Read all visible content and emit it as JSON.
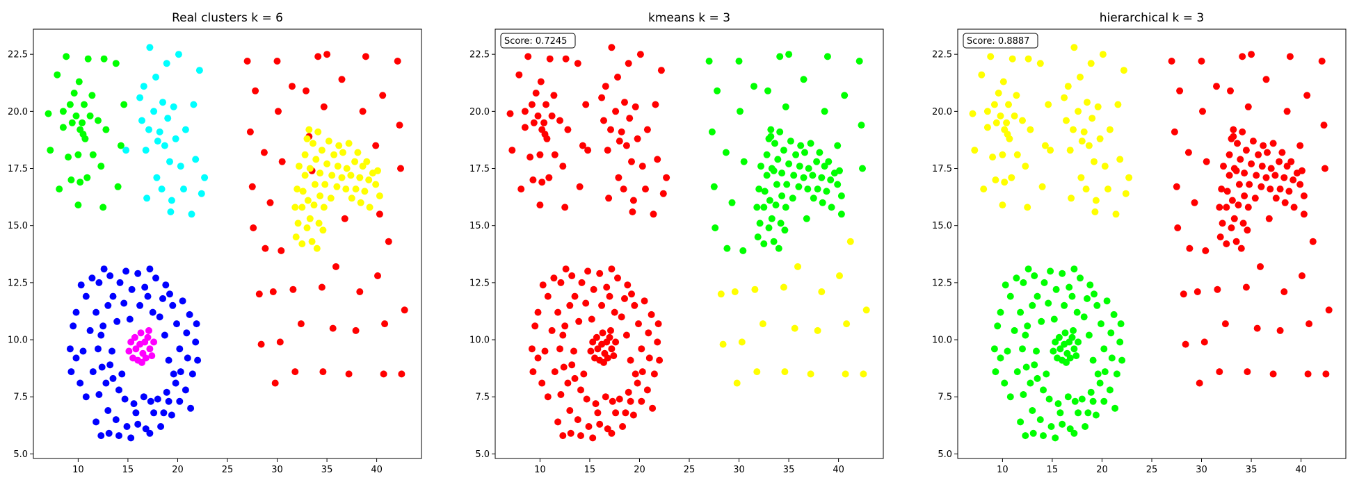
{
  "figure": {
    "panels": [
      {
        "title": "Real clusters k = 6",
        "score": null
      },
      {
        "title": "kmeans k = 3",
        "score": "Score: 0.7245"
      },
      {
        "title": "hierarchical k = 3",
        "score": "Score: 0.8887"
      }
    ],
    "x_ticks": [
      "10",
      "15",
      "20",
      "25",
      "30",
      "35",
      "40"
    ],
    "y_ticks": [
      "5.0",
      "7.5",
      "10.0",
      "12.5",
      "15.0",
      "17.5",
      "20.0",
      "22.5"
    ]
  },
  "chart_data": [
    {
      "type": "scatter",
      "title": "Real clusters k = 6",
      "xlabel": "",
      "ylabel": "",
      "xlim": [
        5.5,
        44.5
      ],
      "ylim": [
        4.8,
        23.6
      ],
      "grid": false,
      "cluster_colors": {
        "A": "#00ff00",
        "B": "#00ffff",
        "C": "#ff0000",
        "D": "#ffff00",
        "E": "#0000ff",
        "F": "#ff00ff"
      }
    },
    {
      "type": "scatter",
      "title": "kmeans k = 3",
      "annotation": "Score: 0.7245",
      "xlabel": "",
      "ylabel": "",
      "xlim": [
        5.5,
        44.5
      ],
      "ylim": [
        4.8,
        23.6
      ],
      "grid": false,
      "cluster_colors": {
        "A": "#ff0000",
        "B": "#ff0000",
        "C": "#00ff00",
        "D": "#00ff00",
        "E": "#ff0000",
        "F": "#ff0000",
        "C_low": "#ffff00"
      }
    },
    {
      "type": "scatter",
      "title": "hierarchical k = 3",
      "annotation": "Score: 0.8887",
      "xlabel": "",
      "ylabel": "",
      "xlim": [
        5.5,
        44.5
      ],
      "ylim": [
        4.8,
        23.6
      ],
      "grid": false,
      "cluster_colors": {
        "A": "#ffff00",
        "B": "#ffff00",
        "C": "#ff0000",
        "D": "#ff0000",
        "E": "#00ff00",
        "F": "#00ff00"
      }
    }
  ],
  "points": {
    "A": [
      [
        7,
        19.9
      ],
      [
        7.2,
        18.3
      ],
      [
        7.9,
        21.6
      ],
      [
        8.1,
        16.6
      ],
      [
        8.5,
        19.3
      ],
      [
        8.5,
        20
      ],
      [
        8.8,
        22.4
      ],
      [
        9,
        18
      ],
      [
        9.2,
        20.3
      ],
      [
        9.3,
        17
      ],
      [
        9.4,
        19.5
      ],
      [
        9.6,
        20.8
      ],
      [
        9.8,
        19.8
      ],
      [
        10,
        18.1
      ],
      [
        10,
        15.9
      ],
      [
        10.1,
        21.3
      ],
      [
        10.2,
        16.9
      ],
      [
        10.2,
        19.2
      ],
      [
        10.4,
        19.5
      ],
      [
        10.5,
        19
      ],
      [
        10.6,
        20.3
      ],
      [
        10.7,
        18.8
      ],
      [
        10.9,
        17.1
      ],
      [
        11,
        22.3
      ],
      [
        11.2,
        19.8
      ],
      [
        11.4,
        20.7
      ],
      [
        11.5,
        18.1
      ],
      [
        12,
        19.6
      ],
      [
        12.3,
        17.6
      ],
      [
        12.5,
        15.8
      ],
      [
        12.6,
        22.3
      ],
      [
        12.8,
        19.2
      ],
      [
        13.8,
        22.1
      ],
      [
        14,
        16.7
      ],
      [
        14.3,
        18.5
      ],
      [
        14.6,
        20.3
      ]
    ],
    "B": [
      [
        14.8,
        18.3
      ],
      [
        16.2,
        20.6
      ],
      [
        16.4,
        19.6
      ],
      [
        16.6,
        21.1
      ],
      [
        16.8,
        18.3
      ],
      [
        16.9,
        16.2
      ],
      [
        17.1,
        19.2
      ],
      [
        17.2,
        22.8
      ],
      [
        17.6,
        20
      ],
      [
        17.8,
        21.5
      ],
      [
        17.9,
        17.1
      ],
      [
        18,
        18.7
      ],
      [
        18.2,
        19.1
      ],
      [
        18.4,
        16.6
      ],
      [
        18.5,
        20.4
      ],
      [
        18.7,
        18.5
      ],
      [
        18.9,
        22.1
      ],
      [
        19,
        19.7
      ],
      [
        19.2,
        17.8
      ],
      [
        19.3,
        15.6
      ],
      [
        19.4,
        16.1
      ],
      [
        19.6,
        20.2
      ],
      [
        19.8,
        18.8
      ],
      [
        20.1,
        22.5
      ],
      [
        20.3,
        17.6
      ],
      [
        20.6,
        16.6
      ],
      [
        20.8,
        19.2
      ],
      [
        21.4,
        15.5
      ],
      [
        21.6,
        20.3
      ],
      [
        21.8,
        17.9
      ],
      [
        22.2,
        21.8
      ],
      [
        22.4,
        16.4
      ],
      [
        22.7,
        17.1
      ]
    ],
    "C": [
      [
        27,
        22.2
      ],
      [
        27.3,
        19.1
      ],
      [
        27.5,
        16.7
      ],
      [
        27.6,
        14.9
      ],
      [
        27.8,
        20.9
      ],
      [
        28.2,
        12
      ],
      [
        28.4,
        9.8
      ],
      [
        28.7,
        18.2
      ],
      [
        28.8,
        14
      ],
      [
        29.3,
        16
      ],
      [
        29.6,
        12.1
      ],
      [
        29.8,
        8.1
      ],
      [
        30,
        22.2
      ],
      [
        30.1,
        20
      ],
      [
        30.3,
        9.9
      ],
      [
        30.4,
        13.9
      ],
      [
        30.5,
        17.8
      ],
      [
        31.5,
        21.1
      ],
      [
        31.6,
        12.2
      ],
      [
        31.8,
        8.6
      ],
      [
        32.4,
        10.7
      ],
      [
        32.9,
        20.9
      ],
      [
        33.2,
        18.9
      ],
      [
        33.5,
        17.4
      ],
      [
        34.1,
        22.4
      ],
      [
        34.5,
        12.3
      ],
      [
        34.6,
        8.6
      ],
      [
        34.7,
        20.2
      ],
      [
        35,
        22.5
      ],
      [
        35.6,
        10.5
      ],
      [
        35.9,
        13.2
      ],
      [
        36.5,
        21.4
      ],
      [
        36.8,
        15.3
      ],
      [
        37.2,
        8.5
      ],
      [
        37.9,
        10.4
      ],
      [
        38.3,
        12.1
      ],
      [
        38.6,
        20
      ],
      [
        38.9,
        22.4
      ],
      [
        39.9,
        18.5
      ],
      [
        40.1,
        12.8
      ],
      [
        40.3,
        15.5
      ],
      [
        40.6,
        20.7
      ],
      [
        40.7,
        8.5
      ],
      [
        40.8,
        10.7
      ],
      [
        41.2,
        14.3
      ],
      [
        42.1,
        22.2
      ],
      [
        42.3,
        19.4
      ],
      [
        42.4,
        17.5
      ],
      [
        42.5,
        8.5
      ],
      [
        42.8,
        11.3
      ]
    ],
    "C_low": [
      [
        28.2,
        12
      ],
      [
        28.4,
        9.8
      ],
      [
        29.6,
        12.1
      ],
      [
        29.8,
        8.1
      ],
      [
        30.3,
        9.9
      ],
      [
        31.6,
        12.2
      ],
      [
        31.8,
        8.6
      ],
      [
        32.4,
        10.7
      ],
      [
        34.5,
        12.3
      ],
      [
        34.6,
        8.6
      ],
      [
        35.6,
        10.5
      ],
      [
        35.9,
        13.2
      ],
      [
        37.2,
        8.5
      ],
      [
        37.9,
        10.4
      ],
      [
        38.3,
        12.1
      ],
      [
        40.1,
        12.8
      ],
      [
        40.7,
        8.5
      ],
      [
        40.8,
        10.7
      ],
      [
        41.2,
        14.3
      ],
      [
        42.5,
        8.5
      ],
      [
        42.8,
        11.3
      ]
    ],
    "D": [
      [
        32.5,
        15.8
      ],
      [
        32.6,
        16.5
      ],
      [
        32.8,
        17.2
      ],
      [
        32.8,
        18.1
      ],
      [
        33,
        14.9
      ],
      [
        33.1,
        16.1
      ],
      [
        33.2,
        19.2
      ],
      [
        33.3,
        15.3
      ],
      [
        33.3,
        17.5
      ],
      [
        33.5,
        14.3
      ],
      [
        33.6,
        18.6
      ],
      [
        33.7,
        15.9
      ],
      [
        33.8,
        16.8
      ],
      [
        33.9,
        17.9
      ],
      [
        34,
        14
      ],
      [
        34.1,
        19.1
      ],
      [
        34.2,
        15.1
      ],
      [
        34.3,
        16.3
      ],
      [
        34.3,
        17.3
      ],
      [
        34.5,
        18.3
      ],
      [
        34.6,
        14.8
      ],
      [
        34.7,
        15.8
      ],
      [
        34.8,
        16.8
      ],
      [
        35,
        17.7
      ],
      [
        35.2,
        18.7
      ],
      [
        35.4,
        16.2
      ],
      [
        35.5,
        17.2
      ],
      [
        35.7,
        18.1
      ],
      [
        36,
        16.7
      ],
      [
        36.1,
        17.6
      ],
      [
        36.2,
        18.5
      ],
      [
        36.5,
        17.1
      ],
      [
        36.6,
        18.2
      ],
      [
        36.9,
        16.6
      ],
      [
        37,
        17.5
      ],
      [
        37.2,
        18.6
      ],
      [
        37.4,
        17.2
      ],
      [
        37.5,
        16.2
      ],
      [
        37.8,
        17.8
      ],
      [
        37.9,
        16.6
      ],
      [
        38.1,
        18.2
      ],
      [
        38.3,
        17.1
      ],
      [
        38.4,
        16
      ],
      [
        38.6,
        17.6
      ],
      [
        38.8,
        16.5
      ],
      [
        39,
        17.8
      ],
      [
        39.2,
        17
      ],
      [
        39.3,
        15.8
      ],
      [
        39.6,
        17.3
      ],
      [
        39.9,
        16.8
      ],
      [
        40.1,
        17.4
      ],
      [
        40.3,
        16.3
      ],
      [
        31.8,
        15.8
      ],
      [
        32,
        16.6
      ],
      [
        32.1,
        15.1
      ],
      [
        31.9,
        14.5
      ],
      [
        32.5,
        14.2
      ],
      [
        32.2,
        17.6
      ],
      [
        33,
        18.8
      ]
    ],
    "E": [
      [
        11.8,
        6.4
      ],
      [
        12.1,
        7.6
      ],
      [
        12.3,
        5.8
      ],
      [
        12.4,
        8.8
      ],
      [
        13,
        6.9
      ],
      [
        13.1,
        5.9
      ],
      [
        13.5,
        8.3
      ],
      [
        13.8,
        6.5
      ],
      [
        14.1,
        5.8
      ],
      [
        14.7,
        7.4
      ],
      [
        14.9,
        6.2
      ],
      [
        15.3,
        5.7
      ],
      [
        15.8,
        6.8
      ],
      [
        16,
        6.3
      ],
      [
        16.6,
        7.5
      ],
      [
        16.8,
        6.1
      ],
      [
        17.2,
        5.9
      ],
      [
        17.6,
        6.8
      ],
      [
        18,
        7.4
      ],
      [
        18.3,
        6.2
      ],
      [
        18.6,
        6.8
      ],
      [
        19.1,
        7.3
      ],
      [
        19.4,
        6.7
      ],
      [
        19.8,
        8.1
      ],
      [
        20.2,
        7.3
      ],
      [
        20.3,
        8.6
      ],
      [
        20.8,
        7.8
      ],
      [
        21,
        9.2
      ],
      [
        21.3,
        7
      ],
      [
        21.5,
        8.5
      ],
      [
        21.8,
        9.9
      ],
      [
        22,
        9.1
      ],
      [
        21.9,
        10.7
      ],
      [
        21.2,
        11.1
      ],
      [
        20.9,
        10.3
      ],
      [
        20.2,
        9.6
      ],
      [
        20.5,
        11.7
      ],
      [
        19.9,
        10.7
      ],
      [
        19.5,
        11.5
      ],
      [
        19.2,
        12
      ],
      [
        18.8,
        12.4
      ],
      [
        18.5,
        11.8
      ],
      [
        17.8,
        12.7
      ],
      [
        17.2,
        13.1
      ],
      [
        16.7,
        12.3
      ],
      [
        16,
        12.9
      ],
      [
        15.4,
        12.2
      ],
      [
        14.8,
        13
      ],
      [
        14.2,
        12.5
      ],
      [
        13.5,
        11.9
      ],
      [
        13.2,
        12.8
      ],
      [
        12.6,
        13.1
      ],
      [
        12.1,
        12.5
      ],
      [
        11.4,
        12.7
      ],
      [
        10.8,
        11.9
      ],
      [
        10.3,
        12.4
      ],
      [
        9.8,
        11.2
      ],
      [
        9.5,
        10.6
      ],
      [
        9.2,
        9.6
      ],
      [
        9.3,
        8.6
      ],
      [
        9.8,
        9.2
      ],
      [
        10.2,
        8.1
      ],
      [
        10.5,
        9.5
      ],
      [
        10.8,
        7.5
      ],
      [
        11.2,
        10.4
      ],
      [
        11.5,
        8.6
      ],
      [
        11.8,
        11.2
      ],
      [
        12,
        9.6
      ],
      [
        12.5,
        10.6
      ],
      [
        12.8,
        8.1
      ],
      [
        13,
        11.5
      ],
      [
        13.4,
        9.5
      ],
      [
        13.9,
        10.8
      ],
      [
        14.4,
        8.5
      ],
      [
        14.6,
        11.6
      ],
      [
        15.2,
        10.9
      ],
      [
        16.2,
        11.5
      ],
      [
        17,
        11.9
      ],
      [
        17.5,
        11.2
      ],
      [
        18.2,
        11
      ],
      [
        18.7,
        10.2
      ],
      [
        19.1,
        9.1
      ],
      [
        19.6,
        8.5
      ],
      [
        18.9,
        7.7
      ],
      [
        17.3,
        7.3
      ],
      [
        15.6,
        7.2
      ],
      [
        14.1,
        7.8
      ],
      [
        13.2,
        8.9
      ],
      [
        12.3,
        10.2
      ]
    ],
    "F": [
      [
        15.1,
        9.5
      ],
      [
        15.3,
        9.9
      ],
      [
        15.5,
        9.2
      ],
      [
        15.7,
        10.1
      ],
      [
        15.8,
        9.6
      ],
      [
        16,
        9.1
      ],
      [
        16.2,
        9.8
      ],
      [
        16.3,
        10.3
      ],
      [
        16.5,
        9.4
      ],
      [
        16.7,
        9.9
      ],
      [
        16.8,
        9.2
      ],
      [
        17,
        10.1
      ],
      [
        17.2,
        9.6
      ],
      [
        17.4,
        9.3
      ],
      [
        17.6,
        9.9
      ],
      [
        17.1,
        10.4
      ],
      [
        16.4,
        9
      ]
    ]
  }
}
